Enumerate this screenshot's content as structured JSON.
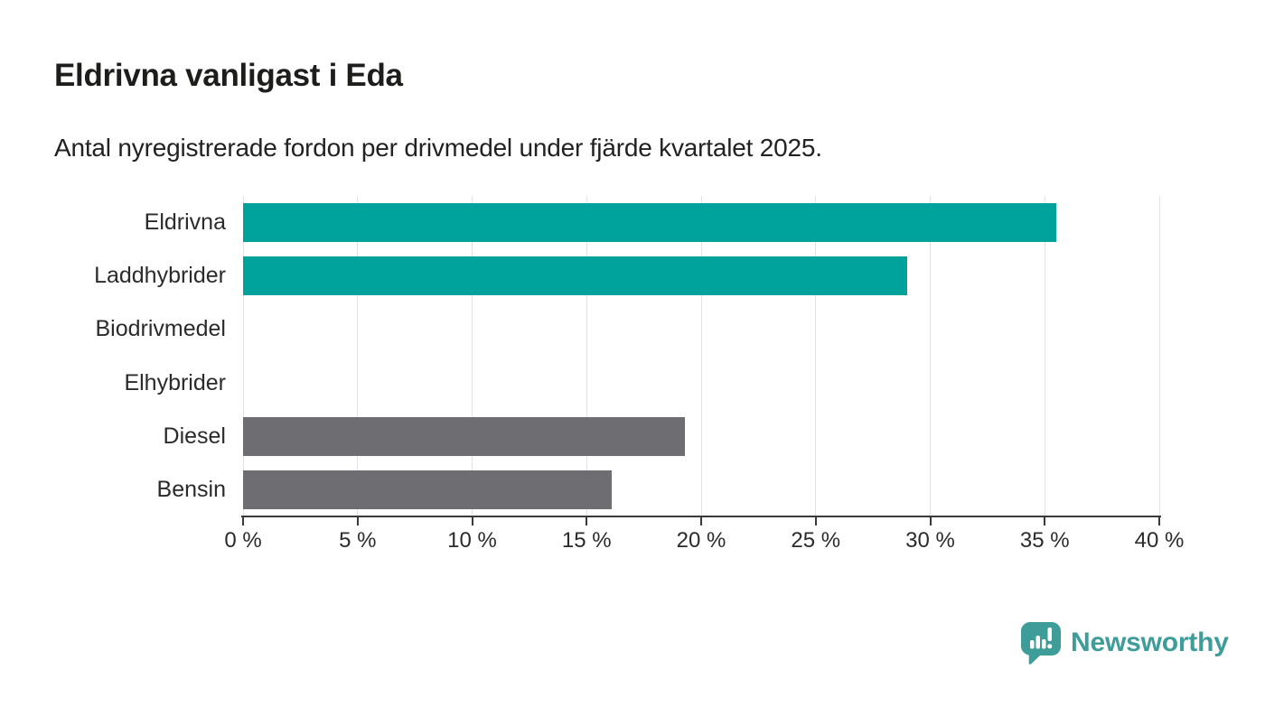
{
  "header": {
    "title": "Eldrivna vanligast i Eda",
    "subtitle": "Antal nyregistrerade fordon per drivmedel under fjärde kvartalet 2025."
  },
  "chart_data": {
    "type": "bar",
    "orientation": "horizontal",
    "title": "Eldrivna vanligast i Eda",
    "subtitle": "Antal nyregistrerade fordon per drivmedel under fjärde kvartalet 2025.",
    "categories": [
      "Eldrivna",
      "Laddhybrider",
      "Biodrivmedel",
      "Elhybrider",
      "Diesel",
      "Bensin"
    ],
    "values": [
      35.5,
      29,
      0,
      0,
      19.3,
      16.1
    ],
    "unit": "%",
    "bar_colors": [
      "#00a39b",
      "#00a39b",
      "#00a39b",
      "#00a39b",
      "#6d6d72",
      "#6d6d72"
    ],
    "xlim": [
      0,
      40
    ],
    "x_ticks": [
      0,
      5,
      10,
      15,
      20,
      25,
      30,
      35,
      40
    ],
    "x_tick_labels": [
      "0 %",
      "5 %",
      "10 %",
      "15 %",
      "20 %",
      "25 %",
      "30 %",
      "35 %",
      "40 %"
    ],
    "grid": "vertical",
    "legend": "none",
    "colors": {
      "gridline": "#e3e3e3",
      "axis": "#39383d",
      "tick_text": "#2b2b2b",
      "label_text": "#2b2b2b"
    }
  },
  "branding": {
    "logo_text": "Newsworthy",
    "logo_color": "#3f9d99",
    "logo_icon": "newsworthy-speech-bubble-chart-icon"
  }
}
